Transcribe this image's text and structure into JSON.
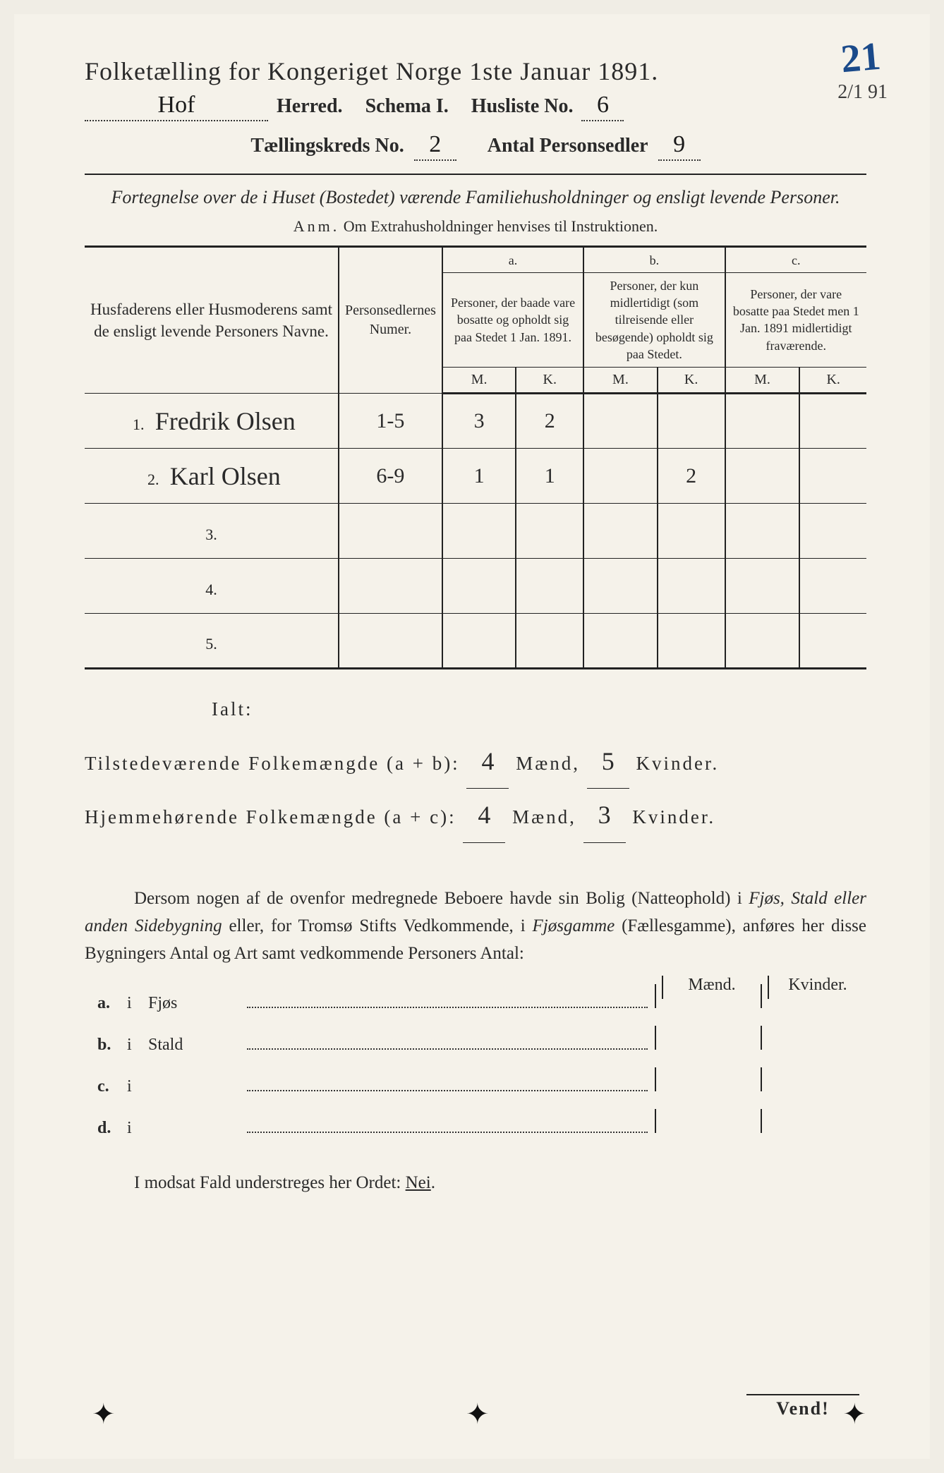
{
  "page_corner_number": "21",
  "date_corner": "2/1 91",
  "title": "Folketælling for Kongeriget Norge 1ste Januar 1891.",
  "header": {
    "herred_value": "Hof",
    "herred_label": "Herred.",
    "schema_label": "Schema I.",
    "husliste_label": "Husliste No.",
    "husliste_value": "6",
    "kreds_label": "Tællingskreds No.",
    "kreds_value": "2",
    "personsedler_label": "Antal Personsedler",
    "personsedler_value": "9"
  },
  "subtitle": "Fortegnelse over de i Huset (Bostedet) værende Familiehusholdninger og ensligt levende Personer.",
  "anm_label": "Anm.",
  "anm_text": "Om Extrahusholdninger henvises til Instruktionen.",
  "table": {
    "col_name": "Husfaderens eller Husmoderens samt de ensligt levende Personers Navne.",
    "col_numer": "Personsedlernes Numer.",
    "col_a_label": "a.",
    "col_a": "Personer, der baade vare bosatte og opholdt sig paa Stedet 1 Jan. 1891.",
    "col_b_label": "b.",
    "col_b": "Personer, der kun midlertidigt (som tilreisende eller besøgende) opholdt sig paa Stedet.",
    "col_c_label": "c.",
    "col_c": "Personer, der vare bosatte paa Stedet men 1 Jan. 1891 midlertidigt fraværende.",
    "m": "M.",
    "k": "K.",
    "rows": [
      {
        "n": "1.",
        "name": "Fredrik Olsen",
        "numer": "1-5",
        "am": "3",
        "ak": "2",
        "bm": "",
        "bk": "",
        "cm": "",
        "ck": ""
      },
      {
        "n": "2.",
        "name": "Karl Olsen",
        "numer": "6-9",
        "am": "1",
        "ak": "1",
        "bm": "",
        "bk": "2",
        "cm": "",
        "ck": ""
      },
      {
        "n": "3.",
        "name": "",
        "numer": "",
        "am": "",
        "ak": "",
        "bm": "",
        "bk": "",
        "cm": "",
        "ck": ""
      },
      {
        "n": "4.",
        "name": "",
        "numer": "",
        "am": "",
        "ak": "",
        "bm": "",
        "bk": "",
        "cm": "",
        "ck": ""
      },
      {
        "n": "5.",
        "name": "",
        "numer": "",
        "am": "",
        "ak": "",
        "bm": "",
        "bk": "",
        "cm": "",
        "ck": ""
      }
    ]
  },
  "totals": {
    "ialt": "Ialt:",
    "line1_label": "Tilstedeværende Folkemængde (a + b):",
    "line1_m": "4",
    "line1_k": "5",
    "line2_label": "Hjemmehørende Folkemængde (a + c):",
    "line2_m": "4",
    "line2_k": "3",
    "maend": "Mænd,",
    "kvinder": "Kvinder."
  },
  "paragraph": "Dersom nogen af de ovenfor medregnede Beboere havde sin Bolig (Natteophold) i Fjøs, Stald eller anden Sidebygning eller, for Tromsø Stifts Vedkommende, i Fjøsgamme (Fællesgamme), anføres her disse Bygningers Antal og Art samt vedkommende Personers Antal:",
  "building_header": {
    "m": "Mænd.",
    "k": "Kvinder."
  },
  "buildings": [
    {
      "label": "a.",
      "i": "i",
      "type": "Fjøs"
    },
    {
      "label": "b.",
      "i": "i",
      "type": "Stald"
    },
    {
      "label": "c.",
      "i": "i",
      "type": ""
    },
    {
      "label": "d.",
      "i": "i",
      "type": ""
    }
  ],
  "footer": {
    "text_pre": "I modsat Fald understreges her Ordet: ",
    "nei": "Nei",
    "vend": "Vend!"
  },
  "colors": {
    "paper": "#f5f2ea",
    "ink": "#2a2a2a",
    "blue_ink": "#1a4a8a"
  }
}
